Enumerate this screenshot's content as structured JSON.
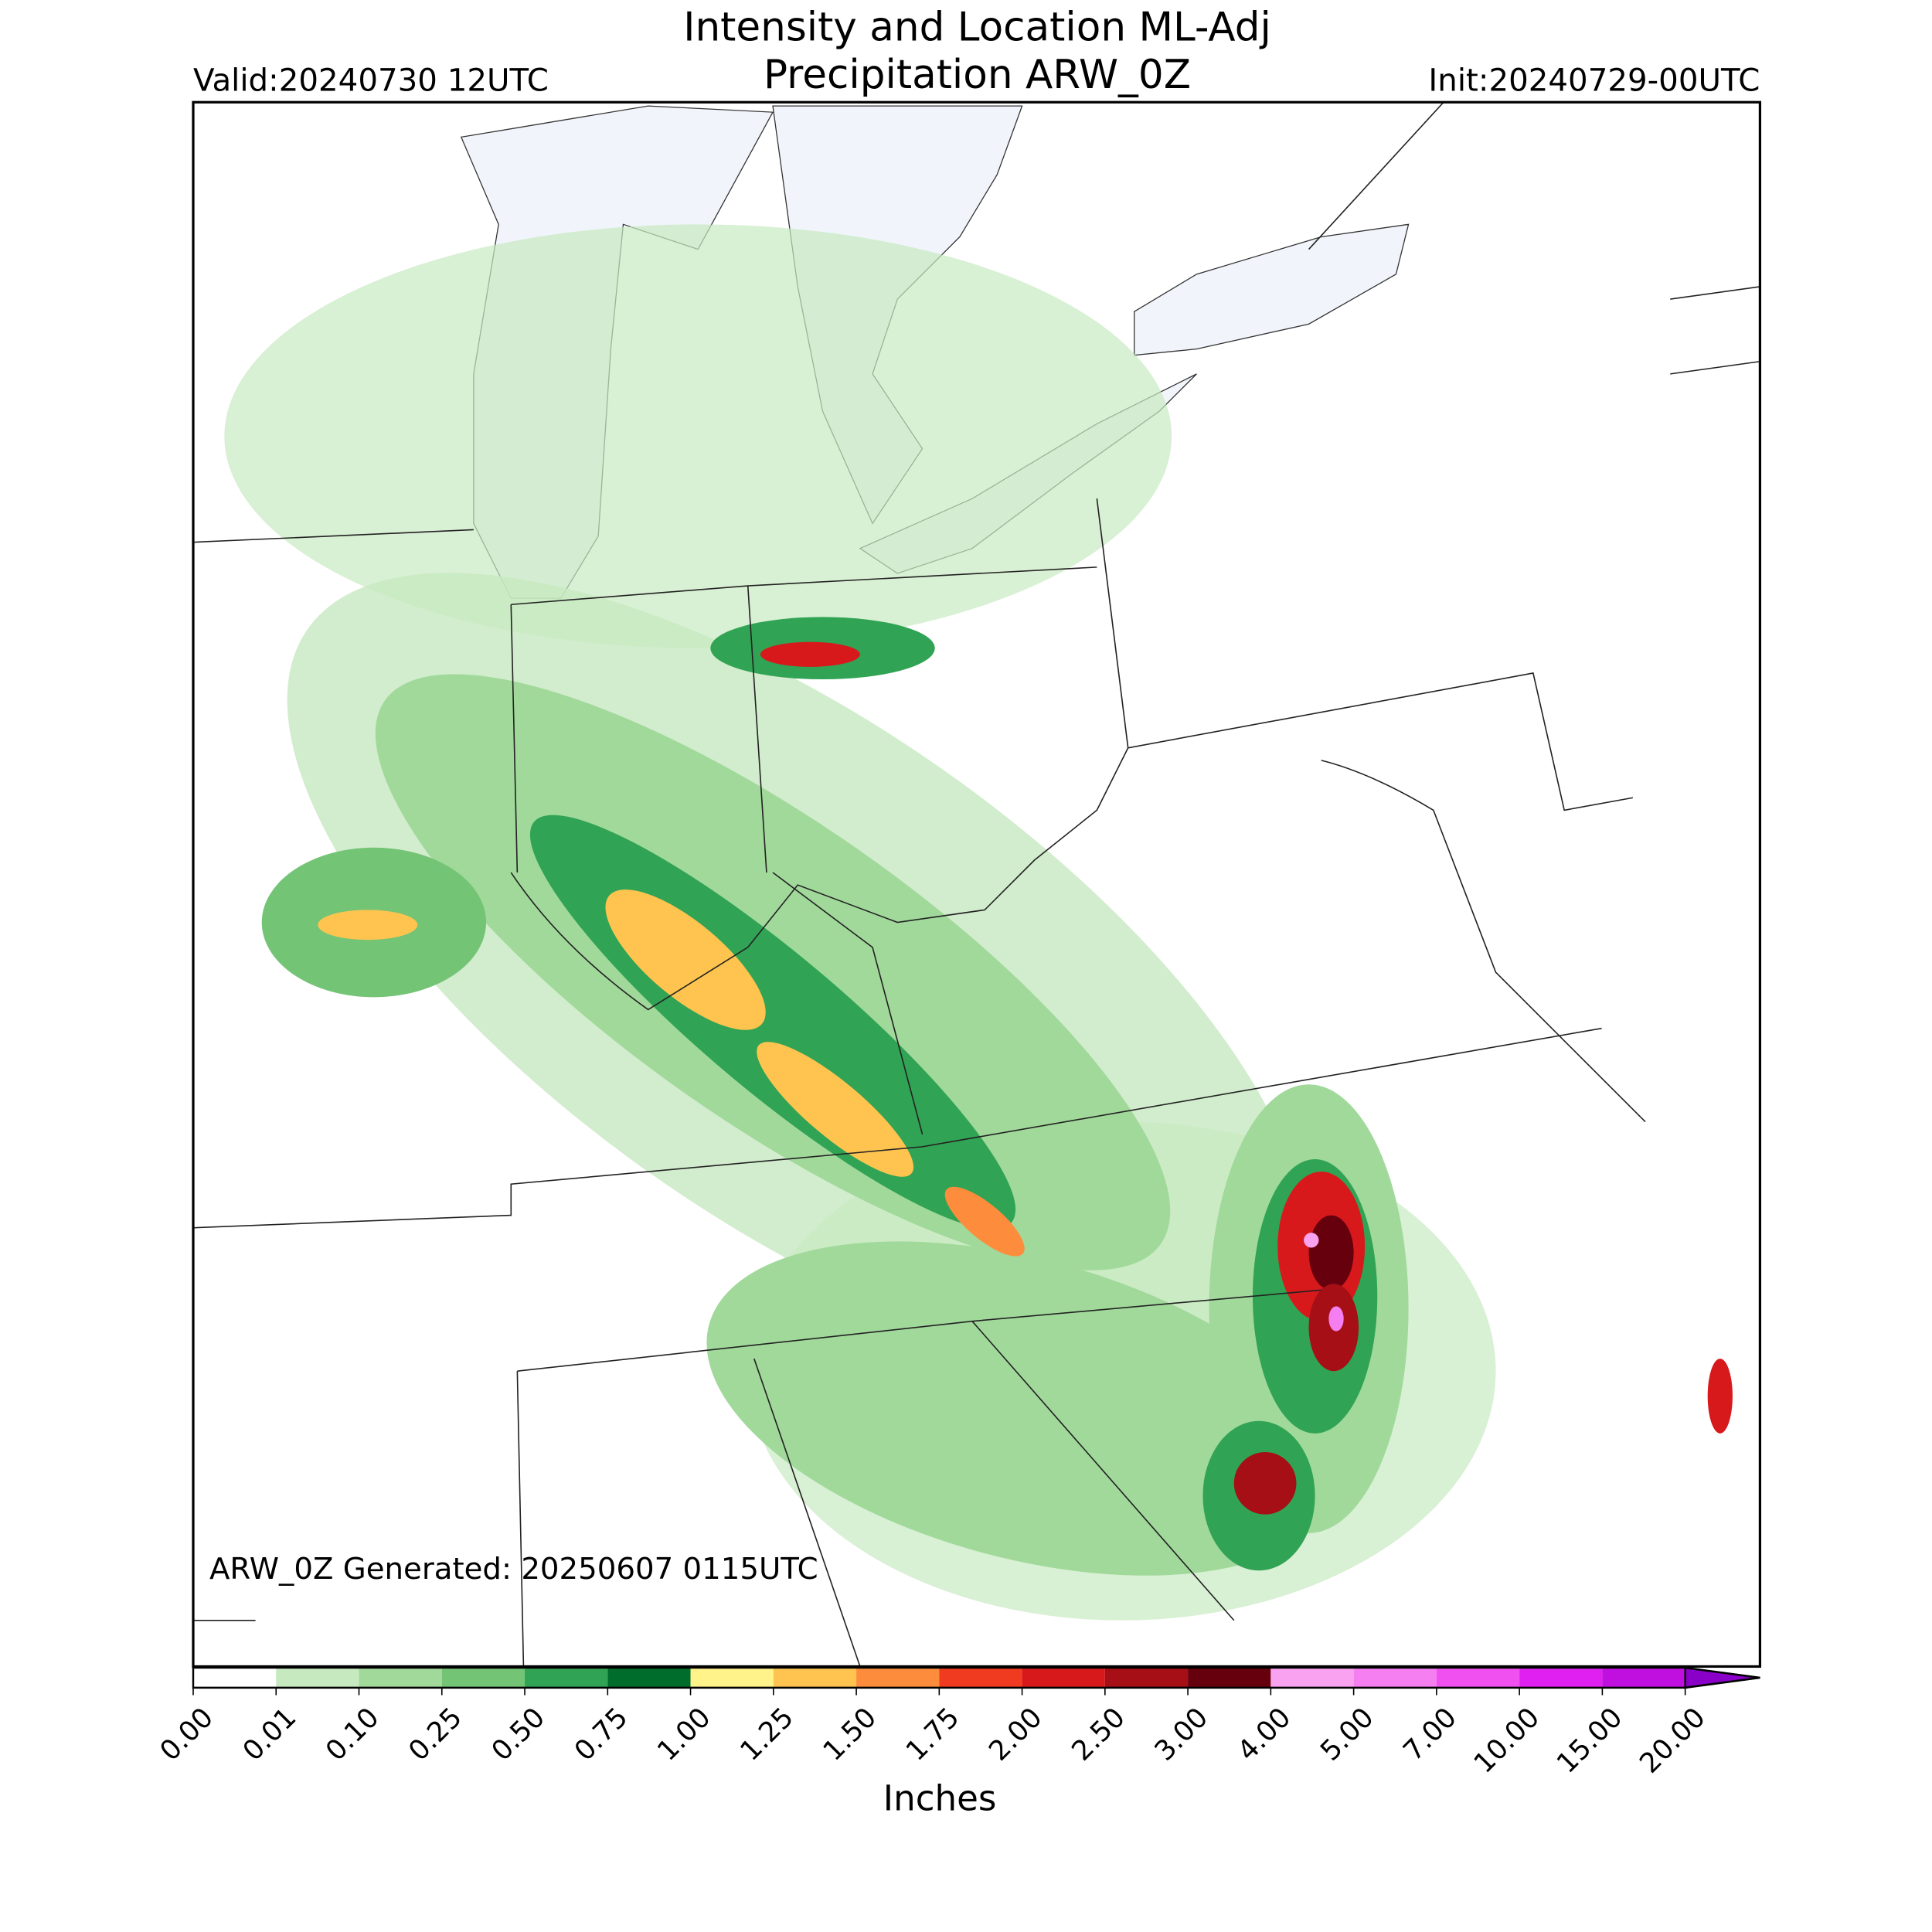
{
  "title": [
    "Intensity and Location ML-Adj",
    "Precipitation ARW_0Z"
  ],
  "valid": "Valid:20240730 12UTC",
  "init": "Init:20240729-00UTC",
  "generated": "ARW_0Z Generated: 20250607 0115UTC",
  "colorbar": {
    "label": "Inches",
    "ticks": [
      {
        "value": 0,
        "label": "0.00"
      },
      {
        "value": 0.01,
        "label": "0.01"
      },
      {
        "value": 0.1,
        "label": "0.10"
      },
      {
        "value": 0.25,
        "label": "0.25"
      },
      {
        "value": 0.5,
        "label": "0.50"
      },
      {
        "value": 0.75,
        "label": "0.75"
      },
      {
        "value": 1,
        "label": "1.00"
      },
      {
        "value": 1.25,
        "label": "1.25"
      },
      {
        "value": 1.5,
        "label": "1.50"
      },
      {
        "value": 1.75,
        "label": "1.75"
      },
      {
        "value": 2,
        "label": "2.00"
      },
      {
        "value": 2.5,
        "label": "2.50"
      },
      {
        "value": 3,
        "label": "3.00"
      },
      {
        "value": 4,
        "label": "4.00"
      },
      {
        "value": 5,
        "label": "5.00"
      },
      {
        "value": 7,
        "label": "7.00"
      },
      {
        "value": 10,
        "label": "10.00"
      },
      {
        "value": 15,
        "label": "15.00"
      },
      {
        "value": 20,
        "label": "20.00"
      }
    ],
    "colors": [
      "#ffffff",
      "#c7e9c0",
      "#a1d99b",
      "#74c476",
      "#31a354",
      "#006d2c",
      "#fff38a",
      "#fec44f",
      "#fd8d3c",
      "#f03b20",
      "#d7191c",
      "#a50f15",
      "#67000d",
      "#f9a3f0",
      "#f57ef0",
      "#f050f0",
      "#e020f0",
      "#c010e0",
      "#8a00c8"
    ]
  }
}
